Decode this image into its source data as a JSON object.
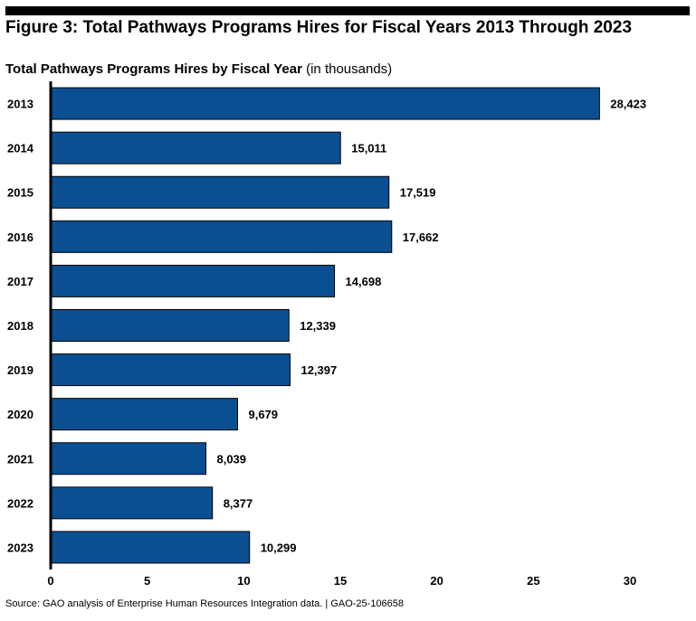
{
  "figure_title": "Figure 3: Total Pathways Programs Hires for Fiscal Years 2013 Through 2023",
  "chart_title_bold": "Total Pathways Programs Hires by Fiscal Year",
  "chart_title_unit": "(in thousands)",
  "source": "Source: GAO analysis of Enterprise Human Resources Integration data.  |  GAO-25-106658",
  "colors": {
    "bar": "#0B4F93",
    "bar_border": "#000000"
  },
  "chart_data": {
    "type": "bar",
    "orientation": "horizontal",
    "title": "Total Pathways Programs Hires by Fiscal Year (in thousands)",
    "categories": [
      "2013",
      "2014",
      "2015",
      "2016",
      "2017",
      "2018",
      "2019",
      "2020",
      "2021",
      "2022",
      "2023"
    ],
    "values": [
      28.423,
      15.011,
      17.519,
      17.662,
      14.698,
      12.339,
      12.397,
      9.679,
      8.039,
      8.377,
      10.299
    ],
    "labels": [
      "28,423",
      "15,011",
      "17,519",
      "17,662",
      "14,698",
      "12,339",
      "12,397",
      "9,679",
      "8,039",
      "8,377",
      "10,299"
    ],
    "xticks": [
      0,
      5,
      10,
      15,
      20,
      25,
      30
    ],
    "xlim": [
      0,
      30
    ],
    "xlabel": "",
    "ylabel": "",
    "grid": false
  }
}
